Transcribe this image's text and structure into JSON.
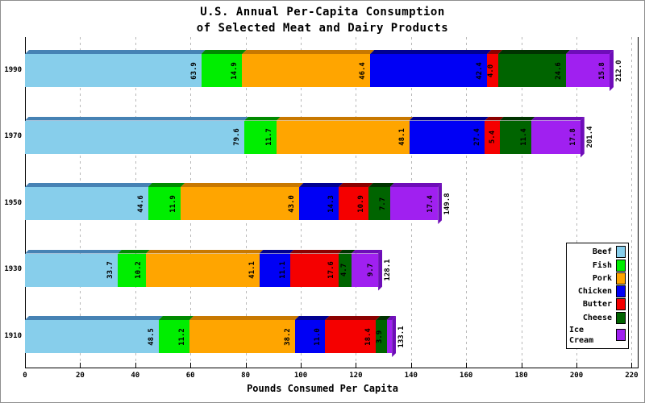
{
  "window": {
    "background": "#ffffff",
    "border_color": "#8f8f8f"
  },
  "title": {
    "line1": "U.S. Annual Per-Capita Consumption",
    "line2": "of Selected Meat and Dairy Products"
  },
  "chart_data": {
    "type": "bar",
    "orientation": "horizontal",
    "stacked": true,
    "style": "3d-bevel",
    "categories": [
      "1990",
      "1970",
      "1950",
      "1930",
      "1910"
    ],
    "series": [
      {
        "name": "Beef",
        "color": "#87CEEB",
        "dark": "#4682B4",
        "values": [
          63.9,
          79.6,
          44.6,
          33.7,
          48.5
        ]
      },
      {
        "name": "Fish",
        "color": "#00EE00",
        "dark": "#008A00",
        "values": [
          14.9,
          11.7,
          11.9,
          10.2,
          11.2
        ]
      },
      {
        "name": "Pork",
        "color": "#FFA500",
        "dark": "#C87800",
        "values": [
          46.4,
          48.1,
          43.0,
          41.1,
          38.2
        ]
      },
      {
        "name": "Chicken",
        "color": "#0000F5",
        "dark": "#000090",
        "values": [
          42.4,
          27.4,
          14.3,
          11.1,
          11.0
        ]
      },
      {
        "name": "Butter",
        "color": "#F50000",
        "dark": "#8B0000",
        "values": [
          4.0,
          5.4,
          10.9,
          17.6,
          18.4
        ]
      },
      {
        "name": "Cheese",
        "color": "#006400",
        "dark": "#003300",
        "values": [
          24.6,
          11.4,
          7.7,
          4.7,
          3.9
        ]
      },
      {
        "name": "Ice Cream",
        "color": "#A020F0",
        "dark": "#6E0DB8",
        "values": [
          15.8,
          17.8,
          17.4,
          9.7,
          1.9
        ]
      }
    ],
    "totals": [
      212.0,
      201.4,
      149.8,
      128.1,
      133.1
    ],
    "xlabel": "Pounds Consumed Per Capita",
    "xlim": [
      0,
      220
    ],
    "xticks": [
      0,
      20,
      40,
      60,
      80,
      100,
      120,
      140,
      160,
      180,
      200,
      220
    ],
    "grid": "dashed-vertical",
    "grid_color": "#b8b8b8",
    "legend_position": "right-inside",
    "value_label_rotation": -90
  }
}
